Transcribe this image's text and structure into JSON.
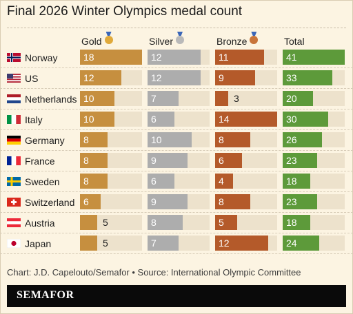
{
  "title": "Final 2026 Winter Olympics medal count",
  "columns": {
    "gold": "Gold",
    "silver": "Silver",
    "bronze": "Bronze",
    "total": "Total"
  },
  "colors": {
    "gold": "#c68f3f",
    "silver": "#adadad",
    "bronze": "#b45a2a",
    "total": "#5d9a3a",
    "track": "#ede2cc",
    "background": "#fcf4e2"
  },
  "icons": {
    "gold": "gold-medal-icon",
    "silver": "silver-medal-icon",
    "bronze": "bronze-medal-icon"
  },
  "chart_data": {
    "type": "table",
    "title": "Final 2026 Winter Olympics medal count",
    "categories": [
      "Norway",
      "US",
      "Netherlands",
      "Italy",
      "Germany",
      "France",
      "Sweden",
      "Switzerland",
      "Austria",
      "Japan"
    ],
    "flags": [
      "norway-flag-icon",
      "us-flag-icon",
      "netherlands-flag-icon",
      "italy-flag-icon",
      "germany-flag-icon",
      "france-flag-icon",
      "sweden-flag-icon",
      "switzerland-flag-icon",
      "austria-flag-icon",
      "japan-flag-icon"
    ],
    "series": [
      {
        "name": "Gold",
        "values": [
          18,
          12,
          10,
          10,
          8,
          8,
          8,
          6,
          5,
          5
        ]
      },
      {
        "name": "Silver",
        "values": [
          12,
          12,
          7,
          6,
          10,
          9,
          6,
          9,
          8,
          7
        ]
      },
      {
        "name": "Bronze",
        "values": [
          11,
          9,
          3,
          14,
          8,
          6,
          4,
          8,
          5,
          12
        ]
      },
      {
        "name": "Total",
        "values": [
          41,
          33,
          20,
          30,
          26,
          23,
          18,
          23,
          18,
          24
        ]
      }
    ]
  },
  "footer": {
    "credit": "Chart: J.D. Capelouto/Semafor • Source: International Olympic Committee",
    "brand": "SEMAFOR"
  }
}
